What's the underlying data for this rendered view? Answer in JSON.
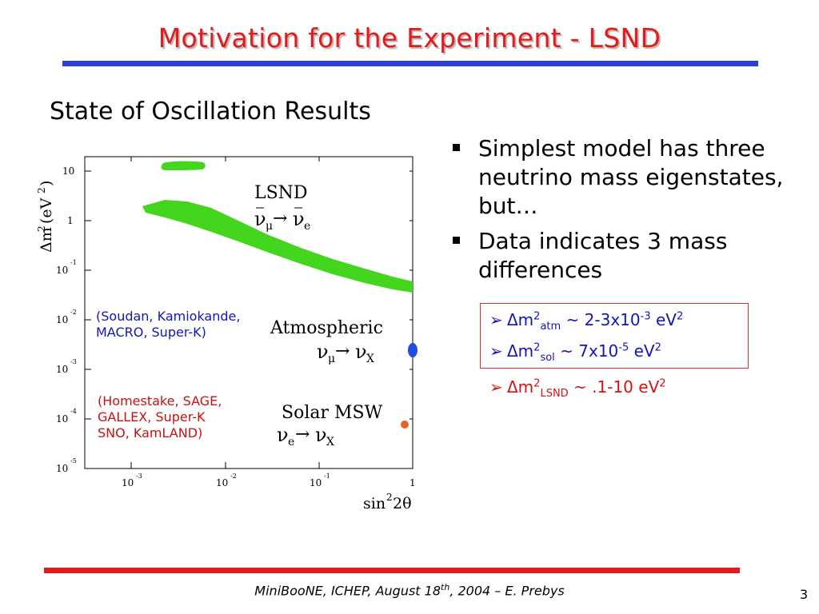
{
  "title": "Motivation for the Experiment - LSND",
  "section_title": "State of Oscillation Results",
  "plot": {
    "y_axis_label_delta": "Δm",
    "y_axis_label_sup": "2",
    "y_axis_label_unit": "(eV",
    "y_axis_label_unit_sup": "2",
    "y_axis_label_close": ")",
    "x_axis_label": "sin",
    "x_axis_label_sup": "2",
    "x_axis_label_tail": "2θ",
    "y_ticks": [
      {
        "base": "10",
        "exp": ""
      },
      {
        "base": "1",
        "exp": ""
      },
      {
        "base": "10",
        "exp": "-1"
      },
      {
        "base": "10",
        "exp": "-2"
      },
      {
        "base": "10",
        "exp": "-3"
      },
      {
        "base": "10",
        "exp": "-4"
      },
      {
        "base": "10",
        "exp": "-5"
      }
    ],
    "x_ticks": [
      {
        "base": "10",
        "exp": "-3"
      },
      {
        "base": "10",
        "exp": "-2"
      },
      {
        "base": "10",
        "exp": "-1"
      },
      {
        "base": "1",
        "exp": ""
      }
    ],
    "lsnd_label": "LSND",
    "lsnd_process_left": "ν",
    "lsnd_process_left_sub": "μ",
    "lsnd_process_arrow": "→",
    "lsnd_process_right": "ν",
    "lsnd_process_right_sub": "e",
    "atm_label": "Atmospheric",
    "atm_process_left": "ν",
    "atm_process_left_sub": "μ",
    "atm_process_arrow": "→",
    "atm_process_right": "ν",
    "atm_process_right_sub": "X",
    "solar_label": "Solar MSW",
    "solar_process_left": "ν",
    "solar_process_left_sub": "e",
    "solar_process_arrow": "→",
    "solar_process_right": "ν",
    "solar_process_right_sub": "X",
    "colors": {
      "lsnd_region": "#44d61e",
      "atm_region": "#1f4fe0",
      "solar_region": "#e2652a"
    }
  },
  "annotations": {
    "atm_experiments_line1": "(Soudan, Kamiokande,",
    "atm_experiments_line2": "MACRO, Super-K)",
    "solar_experiments_line1": "(Homestake, SAGE,",
    "solar_experiments_line2": "GALLEX, Super-K",
    "solar_experiments_line3": "SNO, KamLAND)"
  },
  "bullets": [
    "Simplest model has three neutrino mass eigenstates, but…",
    "Data indicates 3 mass differences"
  ],
  "sub_bullets": [
    {
      "prefix": "Δm",
      "sup1": "2",
      "sub": "atm",
      "text": " ~ 2-3x10",
      "exp": "-3",
      "unit": " eV",
      "unit_sup": "2"
    },
    {
      "prefix": "Δm",
      "sup1": "2",
      "sub": "sol",
      "text": " ~ 7x10",
      "exp": "-5",
      "unit": " eV",
      "unit_sup": "2"
    },
    {
      "prefix": "Δm",
      "sup1": "2",
      "sub": "LSND",
      "text": " ~ .1-10 eV",
      "exp": "",
      "unit": "",
      "unit_sup": "2"
    }
  ],
  "footer": {
    "text_before": "MiniBooNE, ICHEP, August 18",
    "sup": "th",
    "text_after": ", 2004 – E. Prebys"
  },
  "page_number": "3",
  "theme": {
    "title_color": "#e41b1b",
    "top_rule_color": "#2d3fd4",
    "bottom_rule_color": "#e41b1b",
    "sub_bullet_color": "#1414b8",
    "highlight_box_color": "#d23030"
  }
}
